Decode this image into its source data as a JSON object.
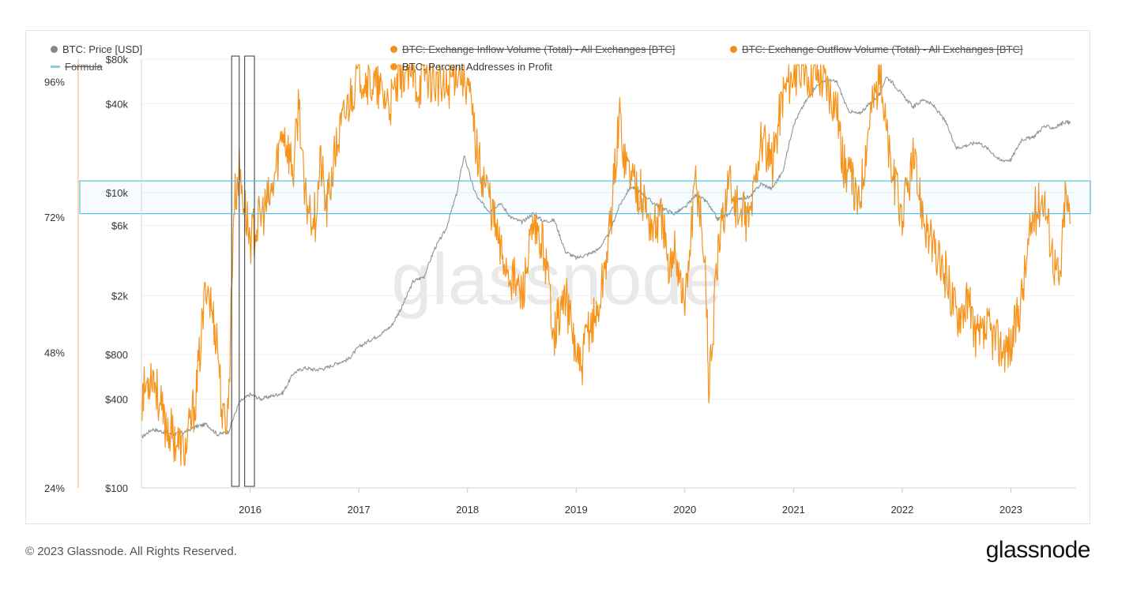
{
  "legend": {
    "price": {
      "label": "BTC: Price [USD]",
      "color": "#8e9596"
    },
    "formula": {
      "label": "Formula",
      "color": "#8fc8e6"
    },
    "inflow": {
      "label": "BTC: Exchange Inflow Volume (Total) - All Exchanges [BTC]",
      "color": "#f0901c"
    },
    "outflow": {
      "label": "BTC: Exchange Outflow Volume (Total) - All Exchanges [BTC]",
      "color": "#f0901c"
    },
    "profit": {
      "label": "BTC: Percent Addresses in Profit",
      "color": "#f7931a"
    }
  },
  "watermark": "glassnode",
  "footer": {
    "copyright": "© 2023 Glassnode. All Rights Reserved.",
    "logo": "glassnode"
  },
  "chart_data": {
    "type": "line",
    "x_ticks": [
      "2016",
      "2017",
      "2018",
      "2019",
      "2020",
      "2021",
      "2022",
      "2023"
    ],
    "y_left_ticks": [
      "24%",
      "48%",
      "72%",
      "96%"
    ],
    "y_right_ticks": [
      "$100",
      "$400",
      "$800",
      "$2k",
      "$6k",
      "$10k",
      "$40k",
      "$80k"
    ],
    "xlim": [
      2015.0,
      2023.6
    ],
    "y_left_range": [
      24,
      100
    ],
    "y_price_range_log": [
      100,
      80000
    ],
    "price_scale": "log",
    "series": [
      {
        "name": "BTC: Price [USD]",
        "color": "#8e9596",
        "axis": "price",
        "x": [
          2015.0,
          2015.1,
          2015.2,
          2015.3,
          2015.4,
          2015.5,
          2015.6,
          2015.7,
          2015.8,
          2015.9,
          2016.0,
          2016.1,
          2016.2,
          2016.3,
          2016.4,
          2016.5,
          2016.6,
          2016.7,
          2016.8,
          2016.9,
          2017.0,
          2017.1,
          2017.2,
          2017.3,
          2017.4,
          2017.5,
          2017.6,
          2017.7,
          2017.8,
          2017.9,
          2017.97,
          2018.05,
          2018.1,
          2018.2,
          2018.3,
          2018.4,
          2018.5,
          2018.6,
          2018.7,
          2018.8,
          2018.9,
          2019.0,
          2019.1,
          2019.2,
          2019.3,
          2019.4,
          2019.5,
          2019.6,
          2019.7,
          2019.8,
          2019.9,
          2020.0,
          2020.1,
          2020.2,
          2020.3,
          2020.4,
          2020.5,
          2020.6,
          2020.7,
          2020.8,
          2020.9,
          2021.0,
          2021.1,
          2021.2,
          2021.3,
          2021.4,
          2021.5,
          2021.6,
          2021.7,
          2021.8,
          2021.85,
          2021.9,
          2022.0,
          2022.1,
          2022.2,
          2022.3,
          2022.4,
          2022.5,
          2022.6,
          2022.7,
          2022.8,
          2022.9,
          2023.0,
          2023.1,
          2023.2,
          2023.3,
          2023.4,
          2023.5,
          2023.55
        ],
        "values": [
          220,
          250,
          240,
          230,
          240,
          260,
          270,
          230,
          240,
          380,
          430,
          400,
          420,
          440,
          600,
          650,
          630,
          650,
          700,
          740,
          900,
          1000,
          1100,
          1250,
          1700,
          2500,
          2700,
          4200,
          5600,
          9800,
          18000,
          11000,
          9000,
          7500,
          8500,
          6800,
          6300,
          7200,
          6400,
          6500,
          4000,
          3600,
          3800,
          4100,
          5200,
          8200,
          11000,
          10000,
          8600,
          7800,
          7200,
          7900,
          9600,
          8700,
          6600,
          7100,
          9200,
          9300,
          11500,
          10600,
          13800,
          29000,
          40000,
          52000,
          58000,
          56000,
          36000,
          34000,
          40000,
          47000,
          61000,
          57000,
          46000,
          38000,
          43000,
          38000,
          30000,
          20000,
          21000,
          22000,
          19500,
          16500,
          16700,
          23000,
          23500,
          28000,
          27500,
          30200,
          29500
        ]
      },
      {
        "name": "BTC: Percent Addresses in Profit",
        "color": "#f7931a",
        "axis": "left",
        "x": [
          2015.0,
          2015.1,
          2015.2,
          2015.3,
          2015.4,
          2015.5,
          2015.6,
          2015.65,
          2015.7,
          2015.75,
          2015.8,
          2015.85,
          2015.9,
          2016.0,
          2016.1,
          2016.2,
          2016.3,
          2016.4,
          2016.45,
          2016.5,
          2016.6,
          2016.65,
          2016.7,
          2016.8,
          2016.9,
          2017.0,
          2017.1,
          2017.2,
          2017.3,
          2017.4,
          2017.5,
          2017.55,
          2017.6,
          2017.7,
          2017.8,
          2017.9,
          2018.0,
          2018.1,
          2018.2,
          2018.3,
          2018.4,
          2018.5,
          2018.6,
          2018.7,
          2018.8,
          2018.9,
          2019.0,
          2019.05,
          2019.1,
          2019.2,
          2019.3,
          2019.4,
          2019.45,
          2019.5,
          2019.6,
          2019.7,
          2019.8,
          2019.85,
          2019.9,
          2020.0,
          2020.1,
          2020.15,
          2020.2,
          2020.22,
          2020.3,
          2020.4,
          2020.5,
          2020.6,
          2020.7,
          2020.8,
          2020.9,
          2021.0,
          2021.1,
          2021.2,
          2021.3,
          2021.4,
          2021.45,
          2021.5,
          2021.6,
          2021.7,
          2021.8,
          2021.85,
          2021.9,
          2022.0,
          2022.1,
          2022.2,
          2022.3,
          2022.4,
          2022.5,
          2022.6,
          2022.7,
          2022.8,
          2022.9,
          2023.0,
          2023.1,
          2023.2,
          2023.3,
          2023.4,
          2023.45,
          2023.5,
          2023.55
        ],
        "values": [
          40,
          45,
          36,
          33,
          30,
          40,
          61,
          55,
          50,
          35,
          38,
          74,
          80,
          68,
          72,
          76,
          88,
          80,
          93,
          75,
          72,
          82,
          73,
          85,
          92,
          98,
          96,
          94,
          92,
          98,
          97,
          95,
          98,
          96,
          94,
          99,
          96,
          82,
          76,
          66,
          62,
          58,
          69,
          67,
          52,
          58,
          48,
          44,
          52,
          55,
          68,
          90,
          82,
          80,
          76,
          70,
          72,
          60,
          68,
          56,
          79,
          72,
          58,
          41,
          64,
          79,
          72,
          72,
          86,
          81,
          94,
          98,
          97,
          98,
          96,
          92,
          82,
          80,
          74,
          90,
          98,
          88,
          80,
          72,
          82,
          72,
          65,
          62,
          55,
          57,
          50,
          52,
          49,
          49,
          58,
          72,
          76,
          64,
          60,
          76,
          71
        ]
      }
    ],
    "annotations": [
      {
        "type": "vertical-box",
        "x_start": 2015.83,
        "x_end": 2015.9
      },
      {
        "type": "vertical-box",
        "x_start": 2015.95,
        "x_end": 2016.04
      },
      {
        "type": "horizontal-band",
        "price_low": 7200,
        "price_high": 12000,
        "color": "#5fbfe0"
      }
    ]
  }
}
